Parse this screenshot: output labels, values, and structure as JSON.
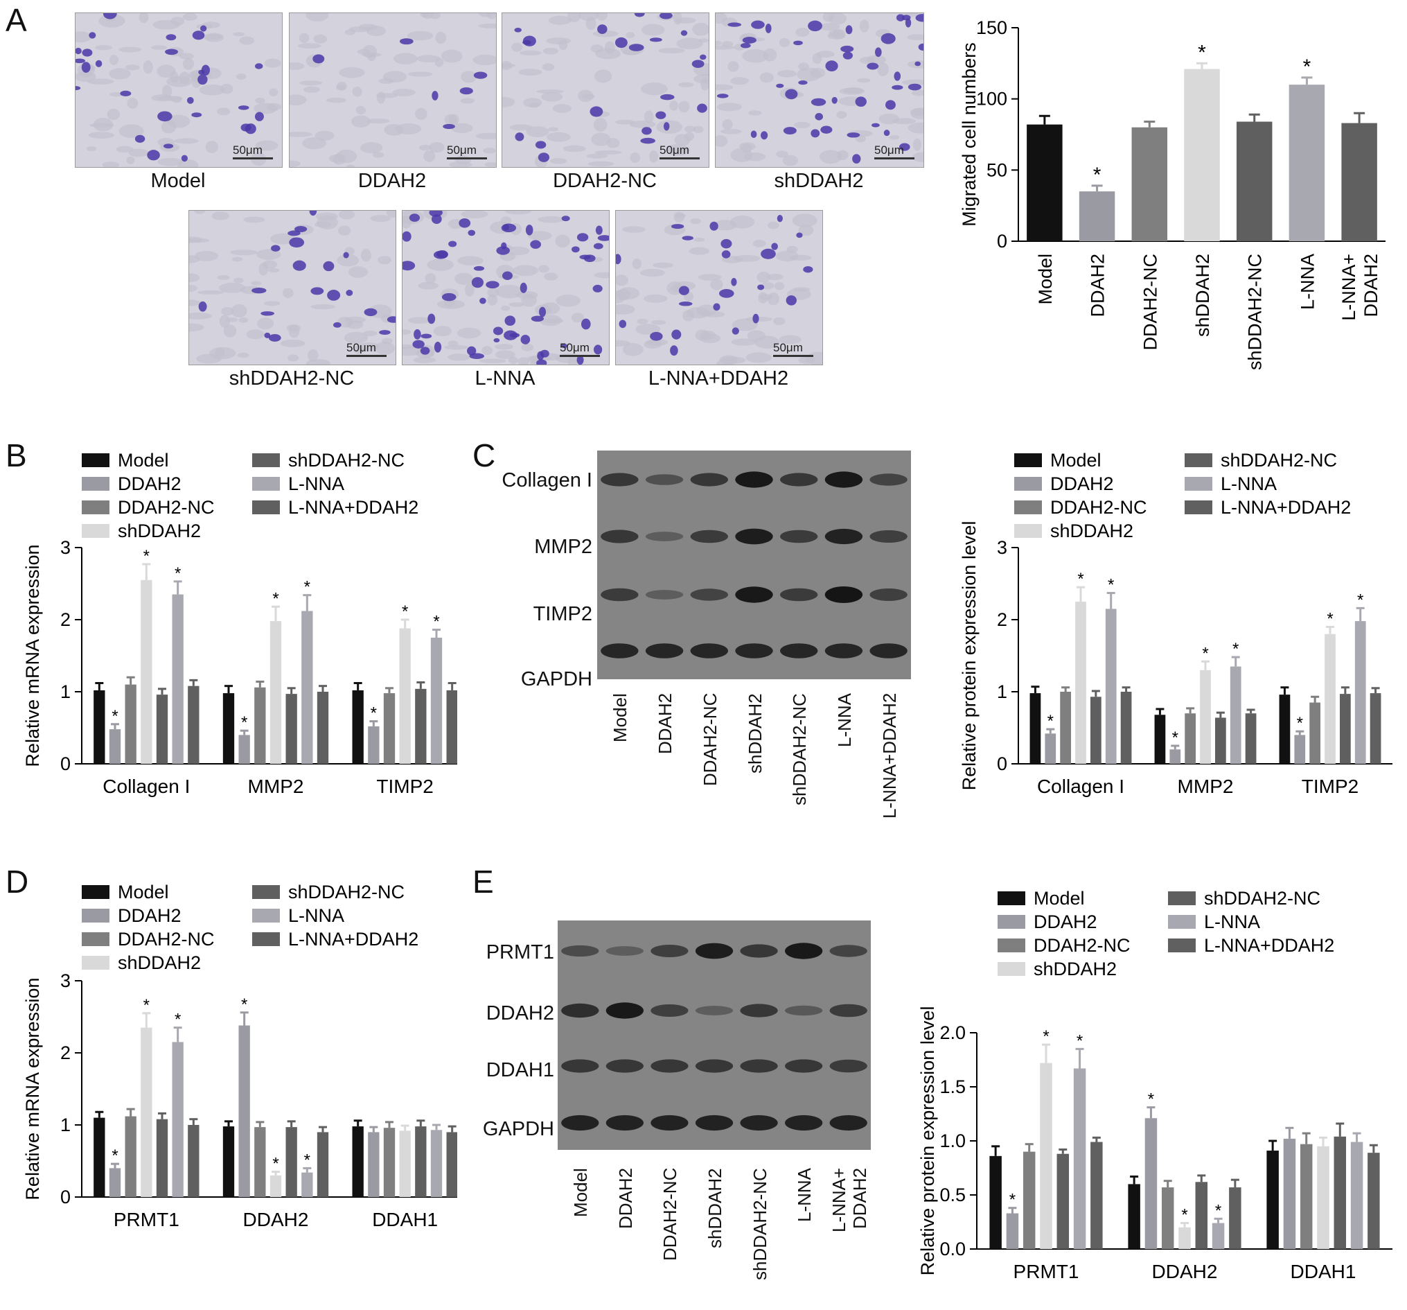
{
  "panels": {
    "a": "A",
    "b": "B",
    "c": "C",
    "d": "D",
    "e": "E"
  },
  "panel_a": {
    "micrographs": [
      {
        "caption": "Model",
        "scale": "50μm"
      },
      {
        "caption": "DDAH2",
        "scale": "50μm"
      },
      {
        "caption": "DDAH2-NC",
        "scale": "50μm"
      },
      {
        "caption": "shDDAH2",
        "scale": "50μm"
      },
      {
        "caption": "shDDAH2-NC",
        "scale": "50μm"
      },
      {
        "caption": "L-NNA",
        "scale": "50μm"
      },
      {
        "caption": "L-NNA+DDAH2",
        "scale": "50μm"
      }
    ]
  },
  "panel_c": {
    "blot_rows": [
      "Collagen I",
      "MMP2",
      "TIMP2",
      "GAPDH"
    ],
    "lanes": [
      "Model",
      "DDAH2",
      "DDAH2-NC",
      "shDDAH2",
      "shDDAH2-NC",
      "L-NNA",
      "L-NNA+DDAH2"
    ]
  },
  "panel_e": {
    "blot_rows": [
      "PRMT1",
      "DDAH2",
      "DDAH1",
      "GAPDH"
    ],
    "lanes": [
      "Model",
      "DDAH2",
      "DDAH2-NC",
      "shDDAH2",
      "shDDAH2-NC",
      "L-NNA",
      "L-NNA+\nDDAH2"
    ]
  },
  "colors": [
    "#111111",
    "#9a9aa2",
    "#7f7f7f",
    "#d9d9d9",
    "#5f5f5f",
    "#a8a8b0",
    "#606060"
  ],
  "chart_data": [
    {
      "id": "A",
      "type": "bar",
      "ylabel": "Migrated cell numbers",
      "ylim": [
        0,
        150
      ],
      "yticks": [
        0,
        50,
        100,
        150
      ],
      "categories": [
        "Model",
        "DDAH2",
        "DDAH2-NC",
        "shDDAH2",
        "shDDAH2-NC",
        "L-NNA",
        "L-NNA+\nDDAH2"
      ],
      "values": [
        82,
        35,
        80,
        121,
        84,
        110,
        83
      ],
      "errors": [
        6,
        4,
        4,
        4,
        5,
        5,
        7
      ],
      "stars": [
        false,
        true,
        false,
        true,
        false,
        true,
        false
      ],
      "star": "*"
    },
    {
      "id": "B",
      "type": "bar",
      "ylabel": "Relative mRNA expression",
      "ylim": [
        0,
        3
      ],
      "yticks": [
        0,
        1,
        2,
        3
      ],
      "categories": [
        "Collagen I",
        "MMP2",
        "TIMP2"
      ],
      "legend": [
        "Model",
        "DDAH2",
        "DDAH2-NC",
        "shDDAH2",
        "shDDAH2-NC",
        "L-NNA",
        "L-NNA+DDAH2"
      ],
      "series": [
        {
          "name": "Model",
          "values": [
            1.02,
            0.98,
            1.02
          ],
          "errors": [
            0.1,
            0.1,
            0.1
          ],
          "stars": [
            false,
            false,
            false
          ]
        },
        {
          "name": "DDAH2",
          "values": [
            0.48,
            0.4,
            0.52
          ],
          "errors": [
            0.07,
            0.06,
            0.07
          ],
          "stars": [
            true,
            true,
            true
          ]
        },
        {
          "name": "DDAH2-NC",
          "values": [
            1.1,
            1.06,
            0.98
          ],
          "errors": [
            0.1,
            0.08,
            0.07
          ],
          "stars": [
            false,
            false,
            false
          ]
        },
        {
          "name": "shDDAH2",
          "values": [
            2.55,
            1.98,
            1.88
          ],
          "errors": [
            0.22,
            0.2,
            0.12
          ],
          "stars": [
            true,
            true,
            true
          ]
        },
        {
          "name": "shDDAH2-NC",
          "values": [
            0.96,
            0.97,
            1.04
          ],
          "errors": [
            0.08,
            0.08,
            0.09
          ],
          "stars": [
            false,
            false,
            false
          ]
        },
        {
          "name": "L-NNA",
          "values": [
            2.35,
            2.12,
            1.75
          ],
          "errors": [
            0.18,
            0.22,
            0.11
          ],
          "stars": [
            true,
            true,
            true
          ]
        },
        {
          "name": "L-NNA+DDAH2",
          "values": [
            1.08,
            1.0,
            1.02
          ],
          "errors": [
            0.08,
            0.08,
            0.1
          ],
          "stars": [
            false,
            false,
            false
          ]
        }
      ],
      "star": "*"
    },
    {
      "id": "C",
      "type": "bar",
      "ylabel": "Relative protein expression level",
      "ylim": [
        0,
        3
      ],
      "yticks": [
        0,
        1,
        2,
        3
      ],
      "categories": [
        "Collagen I",
        "MMP2",
        "TIMP2"
      ],
      "legend": [
        "Model",
        "DDAH2",
        "DDAH2-NC",
        "shDDAH2",
        "shDDAH2-NC",
        "L-NNA",
        "L-NNA+DDAH2"
      ],
      "series": [
        {
          "name": "Model",
          "values": [
            0.98,
            0.68,
            0.96
          ],
          "errors": [
            0.09,
            0.08,
            0.1
          ],
          "stars": [
            false,
            false,
            false
          ]
        },
        {
          "name": "DDAH2",
          "values": [
            0.42,
            0.2,
            0.4
          ],
          "errors": [
            0.06,
            0.05,
            0.05
          ],
          "stars": [
            true,
            true,
            true
          ]
        },
        {
          "name": "DDAH2-NC",
          "values": [
            1.0,
            0.7,
            0.85
          ],
          "errors": [
            0.06,
            0.07,
            0.08
          ],
          "stars": [
            false,
            false,
            false
          ]
        },
        {
          "name": "shDDAH2",
          "values": [
            2.25,
            1.3,
            1.8
          ],
          "errors": [
            0.2,
            0.12,
            0.1
          ],
          "stars": [
            true,
            true,
            true
          ]
        },
        {
          "name": "shDDAH2-NC",
          "values": [
            0.93,
            0.64,
            0.97
          ],
          "errors": [
            0.08,
            0.07,
            0.09
          ],
          "stars": [
            false,
            false,
            false
          ]
        },
        {
          "name": "L-NNA",
          "values": [
            2.15,
            1.35,
            1.98
          ],
          "errors": [
            0.22,
            0.13,
            0.18
          ],
          "stars": [
            true,
            true,
            true
          ]
        },
        {
          "name": "L-NNA+DDAH2",
          "values": [
            1.0,
            0.7,
            0.98
          ],
          "errors": [
            0.06,
            0.05,
            0.07
          ],
          "stars": [
            false,
            false,
            false
          ]
        }
      ],
      "star": "*"
    },
    {
      "id": "D",
      "type": "bar",
      "ylabel": "Relative mRNA expression",
      "ylim": [
        0,
        3
      ],
      "yticks": [
        0,
        1,
        2,
        3
      ],
      "categories": [
        "PRMT1",
        "DDAH2",
        "DDAH1"
      ],
      "legend": [
        "Model",
        "DDAH2",
        "DDAH2-NC",
        "shDDAH2",
        "shDDAH2-NC",
        "L-NNA",
        "L-NNA+DDAH2"
      ],
      "series": [
        {
          "name": "Model",
          "values": [
            1.1,
            0.98,
            0.98
          ],
          "errors": [
            0.08,
            0.07,
            0.08
          ],
          "stars": [
            false,
            false,
            false
          ]
        },
        {
          "name": "DDAH2",
          "values": [
            0.4,
            2.38,
            0.9
          ],
          "errors": [
            0.06,
            0.18,
            0.07
          ],
          "stars": [
            true,
            true,
            false
          ]
        },
        {
          "name": "DDAH2-NC",
          "values": [
            1.12,
            0.97,
            0.96
          ],
          "errors": [
            0.1,
            0.07,
            0.08
          ],
          "stars": [
            false,
            false,
            false
          ]
        },
        {
          "name": "shDDAH2",
          "values": [
            2.35,
            0.3,
            0.92
          ],
          "errors": [
            0.2,
            0.05,
            0.07
          ],
          "stars": [
            true,
            true,
            false
          ]
        },
        {
          "name": "shDDAH2-NC",
          "values": [
            1.08,
            0.97,
            0.98
          ],
          "errors": [
            0.08,
            0.08,
            0.08
          ],
          "stars": [
            false,
            false,
            false
          ]
        },
        {
          "name": "L-NNA",
          "values": [
            2.15,
            0.34,
            0.93
          ],
          "errors": [
            0.2,
            0.06,
            0.07
          ],
          "stars": [
            true,
            true,
            false
          ]
        },
        {
          "name": "L-NNA+DDAH2",
          "values": [
            1.0,
            0.9,
            0.9
          ],
          "errors": [
            0.08,
            0.07,
            0.08
          ],
          "stars": [
            false,
            false,
            false
          ]
        }
      ],
      "star": "*"
    },
    {
      "id": "E",
      "type": "bar",
      "ylabel": "Relative protein expression level",
      "ylim": [
        0,
        2.0
      ],
      "yticks": [
        0.0,
        0.5,
        1.0,
        1.5,
        2.0
      ],
      "categories": [
        "PRMT1",
        "DDAH2",
        "DDAH1"
      ],
      "legend": [
        "Model",
        "DDAH2",
        "DDAH2-NC",
        "shDDAH2",
        "shDDAH2-NC",
        "L-NNA",
        "L-NNA+DDAH2"
      ],
      "series": [
        {
          "name": "Model",
          "values": [
            0.86,
            0.6,
            0.91
          ],
          "errors": [
            0.09,
            0.07,
            0.09
          ],
          "stars": [
            false,
            false,
            false
          ]
        },
        {
          "name": "DDAH2",
          "values": [
            0.33,
            1.21,
            1.02
          ],
          "errors": [
            0.05,
            0.1,
            0.1
          ],
          "stars": [
            true,
            true,
            false
          ]
        },
        {
          "name": "DDAH2-NC",
          "values": [
            0.9,
            0.57,
            0.97
          ],
          "errors": [
            0.07,
            0.06,
            0.1
          ],
          "stars": [
            false,
            false,
            false
          ]
        },
        {
          "name": "shDDAH2",
          "values": [
            1.72,
            0.2,
            0.95
          ],
          "errors": [
            0.17,
            0.04,
            0.08
          ],
          "stars": [
            true,
            true,
            false
          ]
        },
        {
          "name": "shDDAH2-NC",
          "values": [
            0.88,
            0.62,
            1.04
          ],
          "errors": [
            0.04,
            0.06,
            0.12
          ],
          "stars": [
            false,
            false,
            false
          ]
        },
        {
          "name": "L-NNA",
          "values": [
            1.67,
            0.24,
            0.99
          ],
          "errors": [
            0.18,
            0.04,
            0.08
          ],
          "stars": [
            true,
            true,
            false
          ]
        },
        {
          "name": "L-NNA+DDAH2",
          "values": [
            0.99,
            0.57,
            0.89
          ],
          "errors": [
            0.04,
            0.07,
            0.07
          ],
          "stars": [
            false,
            false,
            false
          ]
        }
      ],
      "star": "*"
    }
  ]
}
